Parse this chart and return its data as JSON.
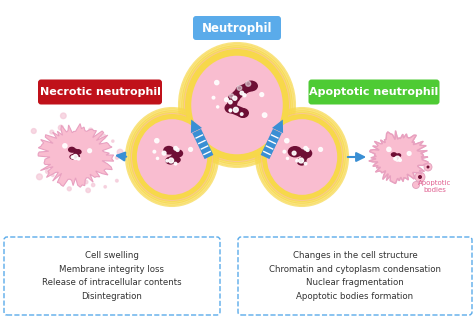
{
  "neutrophil_label": "Neutrophil",
  "necrotic_label": "Necrotic neutrophil",
  "apoptotic_label": "Apoptotic neutrophil",
  "apoptotic_bodies_label": "Apoptotic\nbodies",
  "necrotic_box_text": "Cell swelling\nMembrane integrity loss\nRelease of intracellular contents\nDisintegration",
  "apoptotic_box_text": "Changes in the cell structure\nChromatin and cytoplasm condensation\nNuclear fragmentation\nApoptotic bodies formation",
  "neutrophil_label_bg": "#5aabea",
  "necrotic_label_bg": "#c0111a",
  "apoptotic_label_bg": "#4ecb34",
  "label_text_color": "#ffffff",
  "arrow_color": "#3a8fd4",
  "box_border_color": "#5aabea",
  "box_bg_color": "#ffffff",
  "cell_outer_color": "#f7d84a",
  "cell_outer_glow": "#ffaad4",
  "cell_inner_color": "#f9bdd0",
  "nucleus_color": "#6e0f35",
  "nucleus_dark": "#5a0a2a",
  "background_color": "#ffffff",
  "box_text_color": "#333333",
  "small_label_color": "#e06090",
  "scatter_color": "#f4c8d8"
}
